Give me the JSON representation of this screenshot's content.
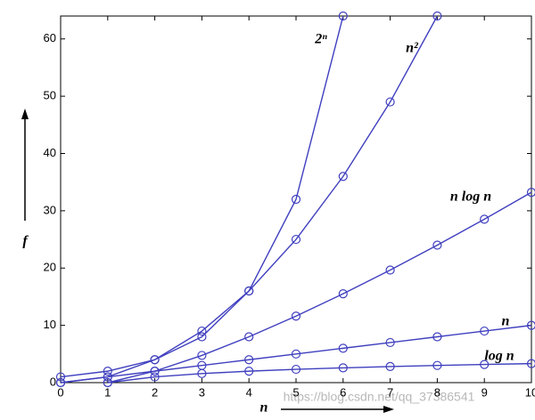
{
  "chart_data": {
    "type": "line",
    "x": [
      0,
      1,
      2,
      3,
      4,
      5,
      6,
      7,
      8,
      9,
      10
    ],
    "series": [
      {
        "name": "2ⁿ",
        "color": "#3f3fbf",
        "values": [
          1,
          2,
          4,
          8,
          16,
          32,
          64,
          null,
          null,
          null,
          null
        ]
      },
      {
        "name": "n²",
        "color": "#3f3fbf",
        "values": [
          0,
          1,
          4,
          9,
          16,
          25,
          36,
          49,
          64,
          null,
          null
        ]
      },
      {
        "name": "n log n",
        "color": "#3f3fbf",
        "values": [
          null,
          0,
          2,
          4.75,
          8,
          11.61,
          15.51,
          19.65,
          24,
          28.53,
          33.22
        ]
      },
      {
        "name": "n",
        "color": "#3f3fbf",
        "values": [
          0,
          1,
          2,
          3,
          4,
          5,
          6,
          7,
          8,
          9,
          10
        ]
      },
      {
        "name": "log n",
        "color": "#3f3fbf",
        "values": [
          null,
          0,
          1,
          1.58,
          2,
          2.32,
          2.58,
          2.81,
          3,
          3.17,
          3.32
        ]
      }
    ],
    "xlabel": "n",
    "ylabel": "f",
    "xlim": [
      0,
      10
    ],
    "ylim": [
      0,
      64
    ],
    "xticks": [
      0,
      1,
      2,
      3,
      4,
      5,
      6,
      7,
      8,
      9,
      10
    ],
    "yticks": [
      0,
      10,
      20,
      30,
      40,
      50,
      60
    ],
    "grid": false,
    "watermark": "https://blog.csdn.net/qq_37386541"
  }
}
